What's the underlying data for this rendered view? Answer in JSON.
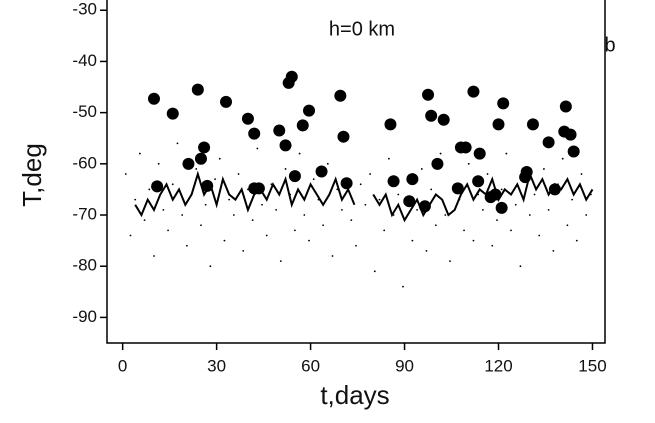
{
  "chart_data": {
    "type": "scatter",
    "annotations": [
      "h=0 km",
      "b"
    ],
    "xlabel": "t,days",
    "ylabel": "T,deg",
    "xlim": [
      -5,
      154
    ],
    "ylim": [
      -95,
      -28
    ],
    "xticks": [
      0,
      30,
      60,
      90,
      120,
      150
    ],
    "yticks": [
      -30,
      -40,
      -50,
      -60,
      -70,
      -80,
      -90
    ],
    "series": [
      {
        "color": "#000000",
        "marker": "small-dot",
        "x": [
          1,
          2.5,
          4,
          5.5,
          7,
          8.5,
          10,
          11.5,
          13,
          14.5,
          16,
          17.5,
          19,
          20.5,
          22,
          23.5,
          25,
          26.5,
          28,
          29.5,
          31,
          32.5,
          34,
          35.5,
          37,
          38.5,
          40,
          41.5,
          43,
          44.5,
          46,
          47.5,
          49,
          50.5,
          52,
          53.5,
          55,
          56.5,
          58,
          59.5,
          61,
          62.5,
          64,
          65.5,
          67,
          68.5,
          70,
          71.5,
          73,
          74.5,
          76,
          77.5,
          79,
          80.5,
          82,
          83.5,
          85,
          86.5,
          88,
          89.5,
          91,
          92.5,
          94,
          95.5,
          97,
          98.5,
          100,
          101.5,
          103,
          104.5,
          106,
          107.5,
          109,
          110.5,
          112,
          113.5,
          115,
          116.5,
          118,
          119.5,
          121,
          122.5,
          124,
          125.5,
          127,
          128.5,
          130,
          131.5,
          133,
          134.5,
          136,
          137.5,
          139,
          140.5,
          142,
          143.5,
          145,
          146.5,
          148,
          149.5
        ],
        "values": [
          -62,
          -74,
          -67,
          -58,
          -71,
          -65,
          -78,
          -60,
          -69,
          -73,
          -64,
          -56,
          -70,
          -76,
          -66,
          -61,
          -72,
          -68,
          -80,
          -63,
          -59,
          -75,
          -67,
          -70,
          -62,
          -77,
          -65,
          -71,
          -57,
          -68,
          -74,
          -64,
          -69,
          -79,
          -61,
          -66,
          -73,
          -58,
          -70,
          -75,
          -63,
          -67,
          -72,
          -60,
          -78,
          -65,
          -69,
          -55,
          -71,
          -76,
          -64,
          -68,
          -62,
          -81,
          -67,
          -73,
          -59,
          -70,
          -66,
          -84,
          -63,
          -75,
          -69,
          -61,
          -77,
          -65,
          -72,
          -58,
          -70,
          -79,
          -64,
          -67,
          -73,
          -60,
          -75,
          -66,
          -69,
          -62,
          -76,
          -71,
          -65,
          -58,
          -73,
          -68,
          -80,
          -63,
          -70,
          -66,
          -74,
          -61,
          -69,
          -77,
          -64,
          -59,
          -72,
          -67,
          -75,
          -62,
          -70,
          -66
        ]
      },
      {
        "color": "#000000",
        "marker": "line",
        "x": [
          4,
          6,
          8,
          10,
          12,
          14,
          16,
          18,
          20,
          22,
          24,
          26,
          28,
          30,
          32,
          34,
          36,
          38,
          40,
          42,
          44,
          46,
          48,
          50,
          52,
          54,
          56,
          58,
          60,
          62,
          64,
          66,
          68,
          70,
          72,
          74,
          76,
          78,
          80,
          82,
          84,
          86,
          88,
          90,
          92,
          94,
          96,
          98,
          100,
          102,
          104,
          106,
          108,
          110,
          112,
          114,
          116,
          118,
          120,
          122,
          124,
          126,
          128,
          130,
          132,
          134,
          136,
          138,
          140,
          142,
          144,
          146,
          148,
          150
        ],
        "values": [
          -68,
          -70,
          -67,
          -69,
          -66,
          -64,
          -67,
          -65,
          -68,
          -66,
          -62,
          -66,
          -64,
          -68,
          -63,
          -66,
          -67,
          -65,
          -69,
          -66,
          -65,
          -67,
          -64,
          -66,
          -63,
          -68,
          -65,
          -67,
          -64,
          -66,
          -68,
          -66,
          -63,
          -67,
          -65,
          -68,
          null,
          null,
          -66,
          -68,
          -66,
          -70,
          -68,
          -71,
          -69,
          -67,
          -70,
          -68,
          -66,
          -67,
          -70,
          -69,
          -66,
          -64,
          -67,
          -65,
          -66,
          -63,
          -67,
          -65,
          -66,
          -64,
          -67,
          -62,
          -65,
          -63,
          -66,
          -64,
          -65,
          -63,
          -66,
          -64,
          -67,
          -65
        ]
      },
      {
        "color": "#000000",
        "marker": "big-dot",
        "x": [
          10,
          16,
          11,
          21,
          24,
          26,
          25,
          27,
          33,
          40,
          42,
          42,
          43.5,
          50,
          52,
          53,
          54,
          55,
          59.5,
          57.5,
          63.5,
          69.5,
          70.5,
          71.5,
          85.5,
          86.5,
          91.5,
          92.5,
          96.5,
          97.5,
          98.5,
          102.5,
          100.5,
          107,
          108,
          109.5,
          112,
          113.5,
          114,
          117.5,
          119,
          121.5,
          120,
          121,
          128.5,
          129,
          131,
          136,
          141.5,
          141,
          143,
          144,
          138
        ],
        "values": [
          -47.3,
          -50.2,
          -64.4,
          -60,
          -45.5,
          -56.8,
          -59,
          -64.3,
          -47.9,
          -51.2,
          -54.1,
          -64.8,
          -64.8,
          -53.5,
          -56.4,
          -44.2,
          -43,
          -62.4,
          -49.6,
          -52.5,
          -61.5,
          -46.7,
          -54.7,
          -63.8,
          -52.3,
          -63.4,
          -67.3,
          -63,
          -68.3,
          -46.5,
          -50.6,
          -51.4,
          -60,
          -64.8,
          -56.8,
          -56.8,
          -45.9,
          -63.4,
          -58,
          -66.5,
          -66,
          -48.2,
          -52.3,
          -68.6,
          -62.6,
          -61.6,
          -52.3,
          -55.8,
          -48.8,
          -53.7,
          -54.3,
          -57.6,
          -65
        ]
      }
    ]
  }
}
